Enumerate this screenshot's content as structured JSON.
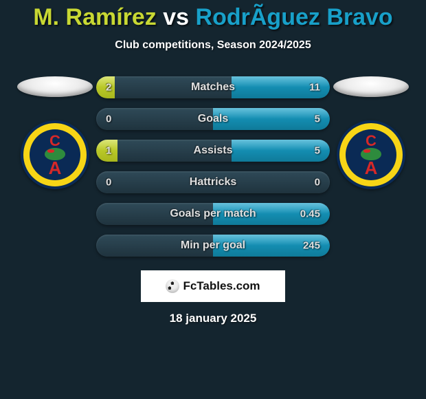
{
  "title": {
    "player1": {
      "name": "M. Ramírez",
      "color": "#c8d833"
    },
    "vs": {
      "text": "vs",
      "color": "#ffffff"
    },
    "player2": {
      "name": "RodrÃ­guez Bravo",
      "color": "#18a0c9"
    }
  },
  "subtitle": "Club competitions, Season 2024/2025",
  "colors": {
    "background": "#14252f",
    "bar_track": "#253d4a",
    "left_fill": "#c8d833",
    "right_fill": "#18a0c9"
  },
  "stat_rows": [
    {
      "label": "Matches",
      "left_value": "2",
      "right_value": "11",
      "left_fill_pct": 8,
      "right_fill_pct": 42
    },
    {
      "label": "Goals",
      "left_value": "0",
      "right_value": "5",
      "left_fill_pct": 0,
      "right_fill_pct": 50
    },
    {
      "label": "Assists",
      "left_value": "1",
      "right_value": "5",
      "left_fill_pct": 9,
      "right_fill_pct": 42
    },
    {
      "label": "Hattricks",
      "left_value": "0",
      "right_value": "0",
      "left_fill_pct": 0,
      "right_fill_pct": 0
    },
    {
      "label": "Goals per match",
      "left_value": "",
      "right_value": "0.45",
      "left_fill_pct": 0,
      "right_fill_pct": 50
    },
    {
      "label": "Min per goal",
      "left_value": "",
      "right_value": "245",
      "left_fill_pct": 0,
      "right_fill_pct": 50
    }
  ],
  "attribution": "FcTables.com",
  "date": "18 january 2025",
  "club_logos": {
    "left": {
      "name": "club-america",
      "primary": "#f7d516",
      "ring": "#0a2a55",
      "letter_c": "C",
      "letter_a": "A"
    },
    "right": {
      "name": "club-america",
      "primary": "#f7d516",
      "ring": "#0a2a55",
      "letter_c": "C",
      "letter_a": "A"
    }
  }
}
